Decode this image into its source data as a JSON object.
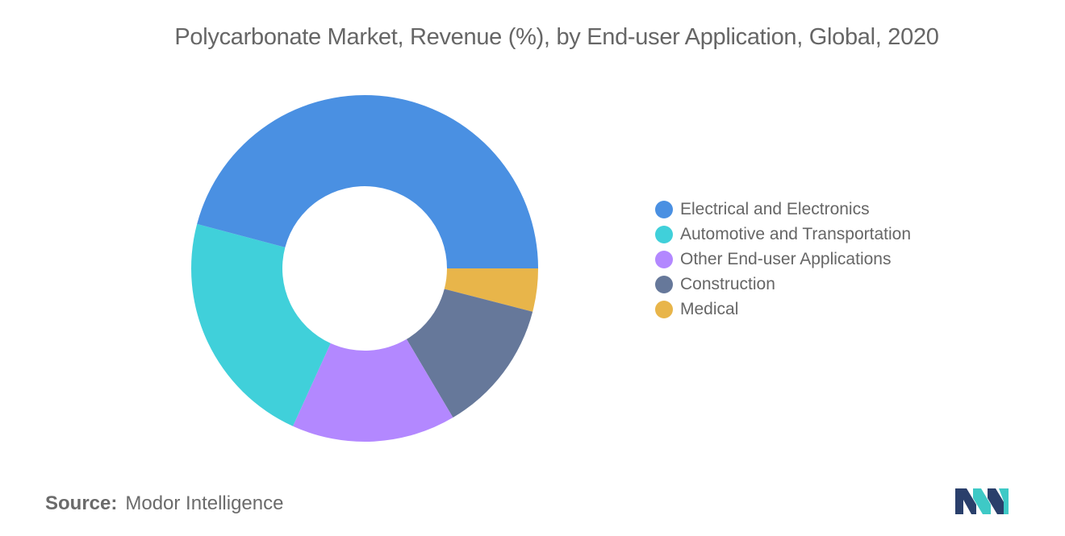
{
  "chart_data": {
    "type": "pie",
    "donut": true,
    "title": "Polycarbonate Market, Revenue (%), by End-user Application, Global, 2020",
    "categories": [
      "Electrical and Electronics",
      "Automotive and Transportation",
      "Other End-user Applications",
      "Construction",
      "Medical"
    ],
    "values": [
      45.6,
      22.2,
      15.2,
      12.4,
      4.0
    ],
    "colors": [
      "#4a90e2",
      "#40d0da",
      "#b388ff",
      "#66789a",
      "#e8b54a"
    ],
    "legend_position": "right"
  },
  "source": {
    "label": "Source:",
    "text": "Modor Intelligence"
  },
  "logo": {
    "name": "mordor-intelligence-logo",
    "colors": [
      "#2a3f6b",
      "#3ec9c6"
    ]
  }
}
